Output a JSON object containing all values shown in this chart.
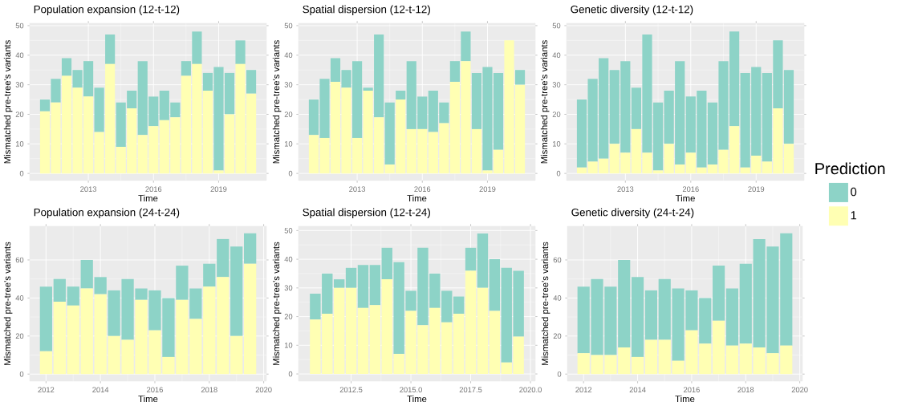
{
  "chart_data": [
    {
      "type": "bar",
      "title": "Population expansion (12-t-12)",
      "xlabel": "Time",
      "ylabel": "Mismatched pre-tree's variants",
      "stacked": true,
      "grid": true,
      "x": [
        2011.0,
        2011.5,
        2012.0,
        2012.5,
        2013.0,
        2013.5,
        2014.0,
        2014.5,
        2015.0,
        2015.5,
        2016.0,
        2016.5,
        2017.0,
        2017.5,
        2018.0,
        2018.5,
        2019.0,
        2019.5,
        2020.0,
        2020.5
      ],
      "series": [
        {
          "color": "#ffffb3",
          "values": [
            21,
            24,
            33,
            29,
            26,
            14,
            37,
            9,
            22,
            13,
            16,
            18,
            19,
            33,
            37,
            28,
            1,
            20,
            37,
            27
          ]
        },
        {
          "color": "#8dd3c7",
          "values": [
            4,
            8,
            6,
            6,
            12,
            15,
            10,
            15,
            6,
            25,
            10,
            10,
            5,
            5,
            11,
            6,
            35,
            14,
            8,
            8
          ]
        }
      ],
      "xlim": [
        2010.3,
        2021.2
      ],
      "ylim": [
        -2.4,
        50.8
      ],
      "xticks": [
        2013,
        2016,
        2019
      ],
      "yticks": [
        0,
        10,
        20,
        30,
        40,
        50
      ]
    },
    {
      "type": "bar",
      "title": "Spatial dispersion (12-t-12)",
      "xlabel": "Time",
      "ylabel": "Mismatched pre-tree's variants",
      "stacked": true,
      "grid": true,
      "x": [
        2011.0,
        2011.5,
        2012.0,
        2012.5,
        2013.0,
        2013.5,
        2014.0,
        2014.5,
        2015.0,
        2015.5,
        2016.0,
        2016.5,
        2017.0,
        2017.5,
        2018.0,
        2018.5,
        2019.0,
        2019.5,
        2020.0,
        2020.5
      ],
      "series": [
        {
          "color": "#ffffb3",
          "values": [
            13,
            12,
            31,
            29,
            12,
            28,
            19,
            3,
            25,
            15,
            15,
            14,
            17,
            31,
            38,
            15,
            1,
            8,
            45,
            30
          ]
        },
        {
          "color": "#8dd3c7",
          "values": [
            12,
            20,
            8,
            6,
            26,
            1,
            28,
            21,
            3,
            23,
            11,
            14,
            7,
            7,
            10,
            19,
            35,
            26,
            0,
            5
          ]
        }
      ],
      "xlim": [
        2010.3,
        2021.2
      ],
      "ylim": [
        -2.4,
        50.8
      ],
      "xticks": [
        2013,
        2016,
        2019
      ],
      "yticks": [
        0,
        10,
        20,
        30,
        40,
        50
      ]
    },
    {
      "type": "bar",
      "title": "Genetic diversity (12-t-12)",
      "xlabel": "Time",
      "ylabel": "Mismatched pre-tree's variants",
      "stacked": true,
      "grid": true,
      "legend": "right",
      "legend_title": "Prediction",
      "x": [
        2011.0,
        2011.5,
        2012.0,
        2012.5,
        2013.0,
        2013.5,
        2014.0,
        2014.5,
        2015.0,
        2015.5,
        2016.0,
        2016.5,
        2017.0,
        2017.5,
        2018.0,
        2018.5,
        2019.0,
        2019.5,
        2020.0,
        2020.5
      ],
      "series": [
        {
          "name": "1",
          "color": "#ffffb3",
          "values": [
            2,
            4,
            5,
            10,
            7,
            15,
            7,
            1,
            10,
            3,
            7,
            2,
            3,
            8,
            16,
            2,
            6,
            4,
            22,
            10
          ]
        },
        {
          "name": "0",
          "color": "#8dd3c7",
          "values": [
            23,
            28,
            34,
            25,
            31,
            14,
            40,
            23,
            18,
            35,
            19,
            26,
            21,
            30,
            32,
            32,
            30,
            30,
            23,
            25
          ]
        }
      ],
      "xlim": [
        2010.3,
        2021.2
      ],
      "ylim": [
        -2.4,
        50.8
      ],
      "xticks": [
        2013,
        2016,
        2019
      ],
      "yticks": [
        0,
        10,
        20,
        30,
        40,
        50
      ]
    },
    {
      "type": "bar",
      "title": "Population expansion (24-t-24)",
      "xlabel": "Time",
      "ylabel": "Mismatched pre-tree's variants",
      "stacked": true,
      "grid": true,
      "x": [
        2012.0,
        2012.5,
        2013.0,
        2013.5,
        2014.0,
        2014.5,
        2015.0,
        2015.5,
        2016.0,
        2016.5,
        2017.0,
        2017.5,
        2018.0,
        2018.5,
        2019.0,
        2019.5
      ],
      "series": [
        {
          "color": "#ffffb3",
          "values": [
            12,
            38,
            36,
            45,
            42,
            20,
            18,
            39,
            23,
            9,
            39,
            29,
            46,
            51,
            20,
            58
          ]
        },
        {
          "color": "#8dd3c7",
          "values": [
            34,
            12,
            10,
            15,
            9,
            24,
            32,
            6,
            21,
            31,
            18,
            16,
            12,
            20,
            47,
            16
          ]
        }
      ],
      "xlim": [
        2011.4,
        2020.1
      ],
      "ylim": [
        -3.7,
        77.7
      ],
      "xticks": [
        2012,
        2014,
        2016,
        2018,
        2020
      ],
      "yticks": [
        0,
        20,
        40,
        60
      ]
    },
    {
      "type": "bar",
      "title": "Spatial dispersion (12-t-24)",
      "xlabel": "Time",
      "ylabel": "Mismatched pre-tree's variants",
      "stacked": true,
      "grid": true,
      "x": [
        2011.0,
        2011.5,
        2012.0,
        2012.5,
        2013.0,
        2013.5,
        2014.0,
        2014.5,
        2015.0,
        2015.5,
        2016.0,
        2016.5,
        2017.0,
        2017.5,
        2018.0,
        2018.5,
        2019.0,
        2019.5
      ],
      "series": [
        {
          "color": "#ffffb3",
          "values": [
            19,
            21,
            30,
            30,
            23,
            24,
            33,
            7,
            22,
            17,
            23,
            18,
            21,
            36,
            30,
            22,
            4,
            13
          ]
        },
        {
          "color": "#8dd3c7",
          "values": [
            9,
            14,
            3,
            7,
            15,
            14,
            11,
            32,
            7,
            27,
            12,
            11,
            6,
            8,
            19,
            18,
            33,
            23
          ]
        }
      ],
      "xlim": [
        2010.3,
        2020.2
      ],
      "ylim": [
        -2.5,
        51.5
      ],
      "xticks": [
        {
          "value": 2012.5,
          "label": "2012.5"
        },
        {
          "value": 2015.0,
          "label": "2015.0"
        },
        {
          "value": 2017.5,
          "label": "2017.5"
        },
        {
          "value": 2020.0,
          "label": "2020.0"
        }
      ],
      "yticks": [
        0,
        10,
        20,
        30,
        40,
        50
      ]
    },
    {
      "type": "bar",
      "title": "Genetic diversity (24-t-24)",
      "xlabel": "Time",
      "ylabel": "Mismatched pre-tree's variants",
      "stacked": true,
      "grid": true,
      "x": [
        2012.0,
        2012.5,
        2013.0,
        2013.5,
        2014.0,
        2014.5,
        2015.0,
        2015.5,
        2016.0,
        2016.5,
        2017.0,
        2017.5,
        2018.0,
        2018.5,
        2019.0,
        2019.5
      ],
      "series": [
        {
          "color": "#ffffb3",
          "values": [
            11,
            10,
            10,
            14,
            9,
            18,
            18,
            7,
            23,
            16,
            28,
            15,
            16,
            14,
            11,
            15
          ]
        },
        {
          "color": "#8dd3c7",
          "values": [
            35,
            40,
            36,
            46,
            42,
            26,
            32,
            38,
            21,
            24,
            29,
            30,
            42,
            57,
            56,
            59
          ]
        }
      ],
      "xlim": [
        2011.4,
        2020.1
      ],
      "ylim": [
        -3.7,
        77.7
      ],
      "xticks": [
        2012,
        2014,
        2016,
        2018,
        2020
      ],
      "yticks": [
        0,
        20,
        40,
        60
      ]
    }
  ]
}
